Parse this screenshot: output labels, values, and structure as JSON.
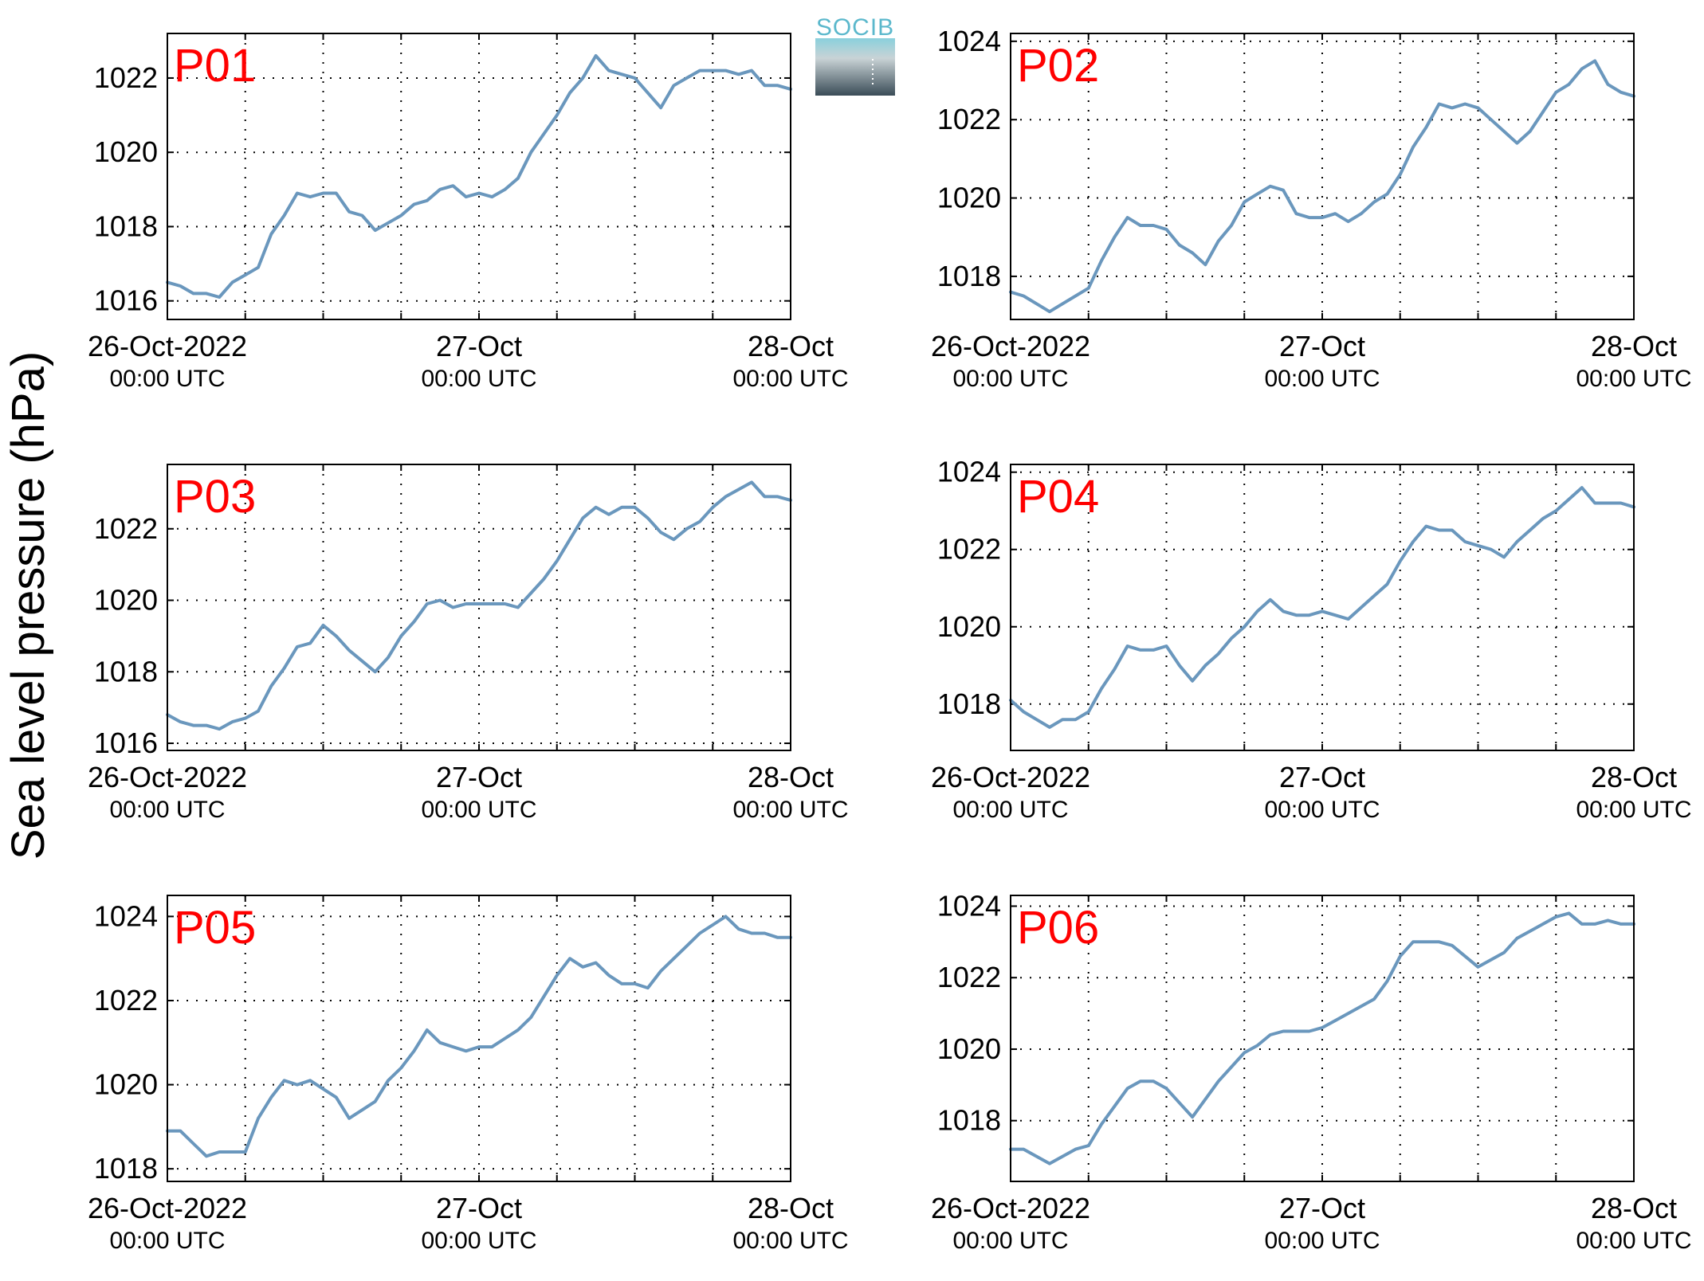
{
  "ylabel": "Sea level pressure (hPa)",
  "logo": {
    "text": "SOCIB"
  },
  "colors": {
    "line": "#6a97bd",
    "panel_title": "#ff0000",
    "grid": "#000000",
    "logo_text": "#5bb8cc"
  },
  "x_ticks": [
    {
      "date": "26-Oct-2022",
      "time": "00:00 UTC"
    },
    {
      "date": "27-Oct",
      "time": "00:00 UTC"
    },
    {
      "date": "28-Oct",
      "time": "00:00 UTC"
    }
  ],
  "chart_data": [
    {
      "type": "line",
      "title": "P01",
      "ylabel": "Sea level pressure (hPa)",
      "xlim": [
        0,
        48
      ],
      "ylim": [
        1015.5,
        1023.2
      ],
      "yticks": [
        1016,
        1018,
        1020,
        1022
      ],
      "grid": true,
      "x": [
        0,
        1,
        2,
        3,
        4,
        5,
        6,
        7,
        8,
        9,
        10,
        11,
        12,
        13,
        14,
        15,
        16,
        17,
        18,
        19,
        20,
        21,
        22,
        23,
        24,
        25,
        26,
        27,
        28,
        29,
        30,
        31,
        32,
        33,
        34,
        35,
        36,
        37,
        38,
        39,
        40,
        41,
        42,
        43,
        44,
        45,
        46,
        47,
        48
      ],
      "values": [
        1016.5,
        1016.4,
        1016.2,
        1016.2,
        1016.1,
        1016.5,
        1016.7,
        1016.9,
        1017.8,
        1018.3,
        1018.9,
        1018.8,
        1018.9,
        1018.9,
        1018.4,
        1018.3,
        1017.9,
        1018.1,
        1018.3,
        1018.6,
        1018.7,
        1019.0,
        1019.1,
        1018.8,
        1018.9,
        1018.8,
        1019.0,
        1019.3,
        1020.0,
        1020.5,
        1021.0,
        1021.6,
        1022.0,
        1022.6,
        1022.2,
        1022.1,
        1022.0,
        1021.6,
        1021.2,
        1021.8,
        1022.0,
        1022.2,
        1022.2,
        1022.2,
        1022.1,
        1022.2,
        1021.8,
        1021.8,
        1021.7
      ]
    },
    {
      "type": "line",
      "title": "P02",
      "ylabel": "Sea level pressure (hPa)",
      "xlim": [
        0,
        48
      ],
      "ylim": [
        1016.9,
        1024.2
      ],
      "yticks": [
        1018,
        1020,
        1022,
        1024
      ],
      "grid": true,
      "x": [
        0,
        1,
        2,
        3,
        4,
        5,
        6,
        7,
        8,
        9,
        10,
        11,
        12,
        13,
        14,
        15,
        16,
        17,
        18,
        19,
        20,
        21,
        22,
        23,
        24,
        25,
        26,
        27,
        28,
        29,
        30,
        31,
        32,
        33,
        34,
        35,
        36,
        37,
        38,
        39,
        40,
        41,
        42,
        43,
        44,
        45,
        46,
        47,
        48
      ],
      "values": [
        1017.6,
        1017.5,
        1017.3,
        1017.1,
        1017.3,
        1017.5,
        1017.7,
        1018.4,
        1019.0,
        1019.5,
        1019.3,
        1019.3,
        1019.2,
        1018.8,
        1018.6,
        1018.3,
        1018.9,
        1019.3,
        1019.9,
        1020.1,
        1020.3,
        1020.2,
        1019.6,
        1019.5,
        1019.5,
        1019.6,
        1019.4,
        1019.6,
        1019.9,
        1020.1,
        1020.6,
        1021.3,
        1021.8,
        1022.4,
        1022.3,
        1022.4,
        1022.3,
        1022.0,
        1021.7,
        1021.4,
        1021.7,
        1022.2,
        1022.7,
        1022.9,
        1023.3,
        1023.5,
        1022.9,
        1022.7,
        1022.6
      ]
    },
    {
      "type": "line",
      "title": "P03",
      "ylabel": "Sea level pressure (hPa)",
      "xlim": [
        0,
        48
      ],
      "ylim": [
        1015.8,
        1023.8
      ],
      "yticks": [
        1016,
        1018,
        1020,
        1022
      ],
      "grid": true,
      "x": [
        0,
        1,
        2,
        3,
        4,
        5,
        6,
        7,
        8,
        9,
        10,
        11,
        12,
        13,
        14,
        15,
        16,
        17,
        18,
        19,
        20,
        21,
        22,
        23,
        24,
        25,
        26,
        27,
        28,
        29,
        30,
        31,
        32,
        33,
        34,
        35,
        36,
        37,
        38,
        39,
        40,
        41,
        42,
        43,
        44,
        45,
        46,
        47,
        48
      ],
      "values": [
        1016.8,
        1016.6,
        1016.5,
        1016.5,
        1016.4,
        1016.6,
        1016.7,
        1016.9,
        1017.6,
        1018.1,
        1018.7,
        1018.8,
        1019.3,
        1019.0,
        1018.6,
        1018.3,
        1018.0,
        1018.4,
        1019.0,
        1019.4,
        1019.9,
        1020.0,
        1019.8,
        1019.9,
        1019.9,
        1019.9,
        1019.9,
        1019.8,
        1020.2,
        1020.6,
        1021.1,
        1021.7,
        1022.3,
        1022.6,
        1022.4,
        1022.6,
        1022.6,
        1022.3,
        1021.9,
        1021.7,
        1022.0,
        1022.2,
        1022.6,
        1022.9,
        1023.1,
        1023.3,
        1022.9,
        1022.9,
        1022.8
      ]
    },
    {
      "type": "line",
      "title": "P04",
      "ylabel": "Sea level pressure (hPa)",
      "xlim": [
        0,
        48
      ],
      "ylim": [
        1016.8,
        1024.2
      ],
      "yticks": [
        1018,
        1020,
        1022,
        1024
      ],
      "grid": true,
      "x": [
        0,
        1,
        2,
        3,
        4,
        5,
        6,
        7,
        8,
        9,
        10,
        11,
        12,
        13,
        14,
        15,
        16,
        17,
        18,
        19,
        20,
        21,
        22,
        23,
        24,
        25,
        26,
        27,
        28,
        29,
        30,
        31,
        32,
        33,
        34,
        35,
        36,
        37,
        38,
        39,
        40,
        41,
        42,
        43,
        44,
        45,
        46,
        47,
        48
      ],
      "values": [
        1018.1,
        1017.8,
        1017.6,
        1017.4,
        1017.6,
        1017.6,
        1017.8,
        1018.4,
        1018.9,
        1019.5,
        1019.4,
        1019.4,
        1019.5,
        1019.0,
        1018.6,
        1019.0,
        1019.3,
        1019.7,
        1020.0,
        1020.4,
        1020.7,
        1020.4,
        1020.3,
        1020.3,
        1020.4,
        1020.3,
        1020.2,
        1020.5,
        1020.8,
        1021.1,
        1021.7,
        1022.2,
        1022.6,
        1022.5,
        1022.5,
        1022.2,
        1022.1,
        1022.0,
        1021.8,
        1022.2,
        1022.5,
        1022.8,
        1023.0,
        1023.3,
        1023.6,
        1023.2,
        1023.2,
        1023.2,
        1023.1
      ]
    },
    {
      "type": "line",
      "title": "P05",
      "ylabel": "Sea level pressure (hPa)",
      "xlim": [
        0,
        48
      ],
      "ylim": [
        1017.7,
        1024.5
      ],
      "yticks": [
        1018,
        1020,
        1022,
        1024
      ],
      "grid": true,
      "x": [
        0,
        1,
        2,
        3,
        4,
        5,
        6,
        7,
        8,
        9,
        10,
        11,
        12,
        13,
        14,
        15,
        16,
        17,
        18,
        19,
        20,
        21,
        22,
        23,
        24,
        25,
        26,
        27,
        28,
        29,
        30,
        31,
        32,
        33,
        34,
        35,
        36,
        37,
        38,
        39,
        40,
        41,
        42,
        43,
        44,
        45,
        46,
        47,
        48
      ],
      "values": [
        1018.9,
        1018.9,
        1018.6,
        1018.3,
        1018.4,
        1018.4,
        1018.4,
        1019.2,
        1019.7,
        1020.1,
        1020.0,
        1020.1,
        1019.9,
        1019.7,
        1019.2,
        1019.4,
        1019.6,
        1020.1,
        1020.4,
        1020.8,
        1021.3,
        1021.0,
        1020.9,
        1020.8,
        1020.9,
        1020.9,
        1021.1,
        1021.3,
        1021.6,
        1022.1,
        1022.6,
        1023.0,
        1022.8,
        1022.9,
        1022.6,
        1022.4,
        1022.4,
        1022.3,
        1022.7,
        1023.0,
        1023.3,
        1023.6,
        1023.8,
        1024.0,
        1023.7,
        1023.6,
        1023.6,
        1023.5,
        1023.5
      ]
    },
    {
      "type": "line",
      "title": "P06",
      "ylabel": "Sea level pressure (hPa)",
      "xlim": [
        0,
        48
      ],
      "ylim": [
        1016.3,
        1024.3
      ],
      "yticks": [
        1018,
        1020,
        1022,
        1024
      ],
      "grid": true,
      "x": [
        0,
        1,
        2,
        3,
        4,
        5,
        6,
        7,
        8,
        9,
        10,
        11,
        12,
        13,
        14,
        15,
        16,
        17,
        18,
        19,
        20,
        21,
        22,
        23,
        24,
        25,
        26,
        27,
        28,
        29,
        30,
        31,
        32,
        33,
        34,
        35,
        36,
        37,
        38,
        39,
        40,
        41,
        42,
        43,
        44,
        45,
        46,
        47,
        48
      ],
      "values": [
        1017.2,
        1017.2,
        1017.0,
        1016.8,
        1017.0,
        1017.2,
        1017.3,
        1017.9,
        1018.4,
        1018.9,
        1019.1,
        1019.1,
        1018.9,
        1018.5,
        1018.1,
        1018.6,
        1019.1,
        1019.5,
        1019.9,
        1020.1,
        1020.4,
        1020.5,
        1020.5,
        1020.5,
        1020.6,
        1020.8,
        1021.0,
        1021.2,
        1021.4,
        1021.9,
        1022.6,
        1023.0,
        1023.0,
        1023.0,
        1022.9,
        1022.6,
        1022.3,
        1022.5,
        1022.7,
        1023.1,
        1023.3,
        1023.5,
        1023.7,
        1023.8,
        1023.5,
        1023.5,
        1023.6,
        1023.5,
        1023.5
      ]
    }
  ]
}
